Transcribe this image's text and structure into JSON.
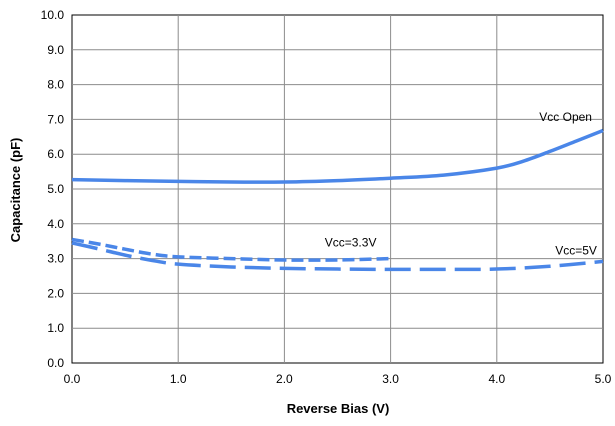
{
  "chart_data": {
    "type": "line",
    "xlabel": "Reverse Bias (V)",
    "ylabel": "Capacitance (pF)",
    "xlim": [
      0,
      5
    ],
    "ylim": [
      0,
      10
    ],
    "xticks": [
      "0.0",
      "1.0",
      "2.0",
      "3.0",
      "4.0",
      "5.0"
    ],
    "yticks": [
      "0.0",
      "1.0",
      "2.0",
      "3.0",
      "4.0",
      "5.0",
      "6.0",
      "7.0",
      "8.0",
      "9.0",
      "10.0"
    ],
    "grid": true,
    "series": [
      {
        "name": "Vcc Open",
        "style": "solid",
        "color": "#4a86e8",
        "x": [
          0.0,
          0.5,
          1.0,
          1.5,
          2.0,
          2.5,
          3.0,
          3.5,
          4.0,
          4.25,
          4.5,
          4.75,
          5.0
        ],
        "y": [
          5.27,
          5.24,
          5.22,
          5.2,
          5.2,
          5.24,
          5.31,
          5.4,
          5.6,
          5.8,
          6.08,
          6.38,
          6.68
        ]
      },
      {
        "name": "Vcc=3.3V",
        "style": "short-dash",
        "color": "#4a86e8",
        "x": [
          0.0,
          0.25,
          0.5,
          0.75,
          1.0,
          1.5,
          2.0,
          2.5,
          3.0
        ],
        "y": [
          3.55,
          3.42,
          3.27,
          3.13,
          3.05,
          3.0,
          2.96,
          2.96,
          3.0
        ]
      },
      {
        "name": "Vcc=5V",
        "style": "long-dash",
        "color": "#4a86e8",
        "x": [
          0.0,
          0.25,
          0.5,
          0.75,
          1.0,
          1.5,
          2.0,
          2.5,
          3.0,
          3.5,
          4.0,
          4.5,
          5.0
        ],
        "y": [
          3.45,
          3.28,
          3.1,
          2.95,
          2.84,
          2.76,
          2.72,
          2.7,
          2.69,
          2.69,
          2.7,
          2.78,
          2.92
        ]
      }
    ]
  }
}
